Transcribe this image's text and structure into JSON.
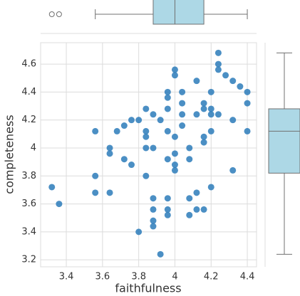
{
  "chart_data": {
    "type": "scatter",
    "x_label": "faithfulness",
    "y_label": "completeness",
    "color": "#2b7bba",
    "box_color": "#add8e6",
    "grid": true,
    "xlim": [
      3.258,
      4.451
    ],
    "ylim": [
      3.15,
      4.753
    ],
    "xticks": [
      3.4,
      3.6,
      3.8,
      4.0,
      4.2,
      4.4
    ],
    "yticks": [
      3.2,
      3.4,
      3.6,
      3.8,
      4.0,
      4.2,
      4.4,
      4.6
    ],
    "x": [
      3.32,
      3.36,
      3.56,
      3.56,
      3.56,
      3.64,
      3.64,
      3.64,
      3.68,
      3.72,
      3.72,
      3.76,
      3.76,
      3.8,
      3.8,
      3.84,
      3.84,
      3.84,
      3.84,
      3.84,
      3.88,
      3.88,
      3.88,
      3.88,
      3.88,
      3.88,
      3.92,
      3.92,
      3.96,
      3.96,
      3.96,
      3.96,
      3.96,
      3.96,
      3.96,
      3.96,
      4.0,
      4.0,
      4.0,
      4.0,
      4.0,
      4.0,
      4.04,
      4.04,
      4.04,
      4.04,
      4.08,
      4.08,
      4.08,
      4.08,
      4.12,
      4.12,
      4.12,
      4.12,
      4.16,
      4.16,
      4.16,
      4.16,
      4.16,
      4.2,
      4.2,
      4.2,
      4.2,
      4.2,
      4.24,
      4.24,
      4.24,
      4.24,
      4.28,
      4.32,
      4.32,
      4.32,
      4.36,
      4.4,
      4.4,
      4.4
    ],
    "values": [
      3.72,
      3.6,
      4.12,
      3.8,
      3.68,
      4.0,
      3.96,
      3.68,
      4.12,
      4.16,
      3.92,
      3.88,
      4.2,
      4.2,
      3.4,
      4.28,
      4.12,
      4.08,
      4.0,
      3.8,
      4.24,
      4.0,
      3.64,
      3.56,
      3.48,
      3.44,
      3.24,
      4.2,
      4.4,
      4.36,
      4.28,
      4.12,
      3.92,
      3.64,
      3.56,
      3.52,
      4.56,
      4.52,
      4.08,
      3.96,
      3.88,
      3.84,
      4.4,
      4.32,
      4.24,
      4.16,
      4.0,
      3.92,
      3.64,
      3.52,
      4.48,
      4.24,
      3.68,
      3.56,
      4.32,
      4.28,
      4.08,
      4.04,
      3.56,
      4.4,
      4.28,
      4.24,
      3.72,
      4.12,
      4.68,
      4.6,
      4.56,
      4.24,
      4.52,
      4.48,
      4.2,
      3.84,
      4.44,
      4.4,
      4.32,
      4.12
    ],
    "x_box": {
      "whisker_low": 3.56,
      "q1": 3.88,
      "median": 4.0,
      "q3": 4.16,
      "whisker_high": 4.4,
      "outliers": [
        3.32,
        3.36
      ]
    },
    "y_box": {
      "whisker_low": 3.24,
      "q1": 3.82,
      "median": 4.12,
      "q3": 4.28,
      "whisker_high": 4.68
    }
  }
}
